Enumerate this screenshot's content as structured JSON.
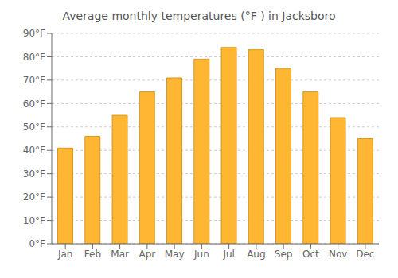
{
  "chart_data": {
    "type": "bar",
    "title": "Average monthly temperatures (°F ) in Jacksboro",
    "categories": [
      "Jan",
      "Feb",
      "Mar",
      "Apr",
      "May",
      "Jun",
      "Jul",
      "Aug",
      "Sep",
      "Oct",
      "Nov",
      "Dec"
    ],
    "values": [
      41,
      46,
      55,
      65,
      71,
      79,
      84,
      83,
      75,
      65,
      54,
      45
    ],
    "color": "#FFB733",
    "ylim": [
      0,
      90
    ],
    "yticks": [
      {
        "value": 0,
        "label": "0°F"
      },
      {
        "value": 10,
        "label": "10°F"
      },
      {
        "value": 20,
        "label": "20°F"
      },
      {
        "value": 30,
        "label": "30°F"
      },
      {
        "value": 40,
        "label": "40°F"
      },
      {
        "value": 50,
        "label": "50°F"
      },
      {
        "value": 60,
        "label": "60°F"
      },
      {
        "value": 70,
        "label": "70°F"
      },
      {
        "value": 80,
        "label": "80°F"
      },
      {
        "value": 90,
        "label": "90°F"
      }
    ],
    "grid": true
  }
}
